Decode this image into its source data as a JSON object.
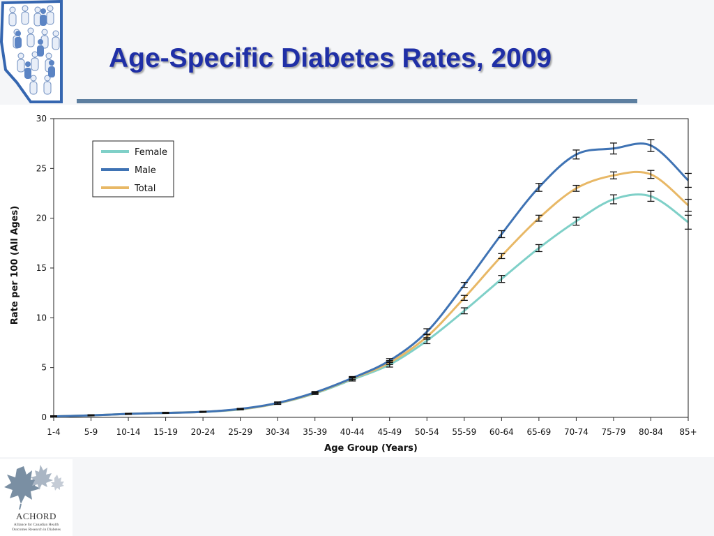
{
  "slide": {
    "title": "Age-Specific Diabetes Rates, 2009"
  },
  "logo_bottom": {
    "name": "ACHORD",
    "subtitle_line1": "Alliance for Canadian Health",
    "subtitle_line2": "Outcomes Research in Diabetes"
  },
  "colors": {
    "title": "#1f2fa6",
    "rule": "#5d7fa0",
    "female": "#7fd0c8",
    "male": "#3f73b4",
    "total": "#e8b866"
  },
  "chart_data": {
    "type": "line",
    "xlabel": "Age Group (Years)",
    "ylabel": "Rate per 100 (All Ages)",
    "ylim": [
      0,
      30
    ],
    "yticks": [
      0,
      5,
      10,
      15,
      20,
      25,
      30
    ],
    "legend_position": "top-left",
    "grid": false,
    "categories": [
      "1-4",
      "5-9",
      "10-14",
      "15-19",
      "20-24",
      "25-29",
      "30-34",
      "35-39",
      "40-44",
      "45-49",
      "50-54",
      "55-59",
      "60-64",
      "65-69",
      "70-74",
      "75-79",
      "80-84",
      "85+"
    ],
    "series": [
      {
        "name": "Female",
        "color": "#7fd0c8",
        "values": [
          0.1,
          0.2,
          0.35,
          0.45,
          0.55,
          0.8,
          1.4,
          2.4,
          3.8,
          5.3,
          7.7,
          10.7,
          13.9,
          17.0,
          19.7,
          21.9,
          22.2,
          19.6
        ],
        "errors": [
          0.05,
          0.05,
          0.05,
          0.05,
          0.05,
          0.05,
          0.1,
          0.1,
          0.15,
          0.25,
          0.3,
          0.3,
          0.35,
          0.35,
          0.4,
          0.45,
          0.5,
          0.7
        ]
      },
      {
        "name": "Male",
        "color": "#3f73b4",
        "values": [
          0.1,
          0.2,
          0.35,
          0.45,
          0.55,
          0.85,
          1.45,
          2.5,
          3.95,
          5.7,
          8.6,
          13.3,
          18.4,
          23.1,
          26.4,
          27.0,
          27.3,
          23.8
        ],
        "errors": [
          0.05,
          0.05,
          0.05,
          0.05,
          0.05,
          0.05,
          0.1,
          0.1,
          0.15,
          0.2,
          0.3,
          0.25,
          0.35,
          0.4,
          0.45,
          0.55,
          0.6,
          0.7
        ]
      },
      {
        "name": "Total",
        "color": "#e8b866",
        "values": [
          0.1,
          0.2,
          0.35,
          0.45,
          0.55,
          0.82,
          1.42,
          2.45,
          3.9,
          5.5,
          8.1,
          12.0,
          16.2,
          20.0,
          23.0,
          24.3,
          24.4,
          21.3
        ],
        "errors": [
          0.05,
          0.05,
          0.05,
          0.05,
          0.05,
          0.05,
          0.1,
          0.1,
          0.12,
          0.2,
          0.25,
          0.25,
          0.25,
          0.3,
          0.3,
          0.35,
          0.4,
          0.6
        ]
      }
    ]
  }
}
